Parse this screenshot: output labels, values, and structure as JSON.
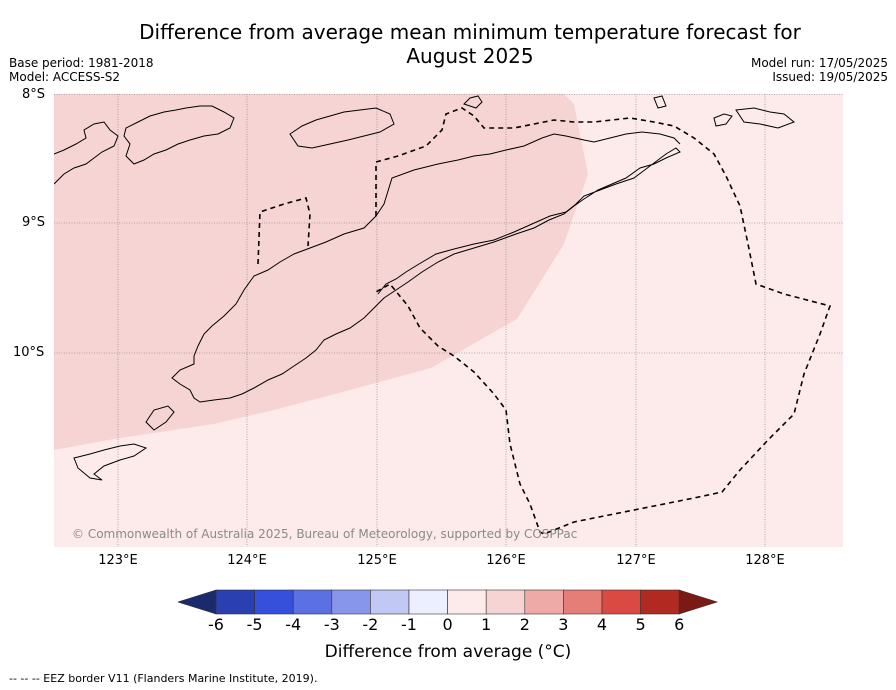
{
  "title_line1": "Difference from average mean minimum temperature forecast for",
  "title_line2": "August 2025",
  "base_period": "Base period: 1981-2018",
  "model": "Model: ACCESS-S2",
  "model_run": "Model run: 17/05/2025",
  "issued": "Issued: 19/05/2025",
  "lat_labels": [
    "8°S",
    "9°S",
    "10°S"
  ],
  "lon_labels": [
    "123°E",
    "124°E",
    "125°E",
    "126°E",
    "127°E",
    "128°E"
  ],
  "copyright": "© Commonwealth of Australia 2025, Bureau of Meteorology, supported by COSPPac",
  "colorbar": {
    "title": "Difference from average (°C)",
    "ticks": [
      "-6",
      "-5",
      "-4",
      "-3",
      "-2",
      "-1",
      "0",
      "1",
      "2",
      "3",
      "4",
      "5",
      "6"
    ],
    "colors": [
      "#1a2a6c",
      "#2a3fb0",
      "#3550dd",
      "#5b70e3",
      "#8796ea",
      "#c1c8f3",
      "#ecefff",
      "#fcebea",
      "#f6d4d4",
      "#eeaaa6",
      "#e67e78",
      "#da4a42",
      "#b02a22",
      "#7a1a15"
    ]
  },
  "map_fill": {
    "low": "#fcebea",
    "mid": "#f6d4d4"
  },
  "footnote": "-- -- -- EEZ border V11 (Flanders Marine Institute, 2019)."
}
